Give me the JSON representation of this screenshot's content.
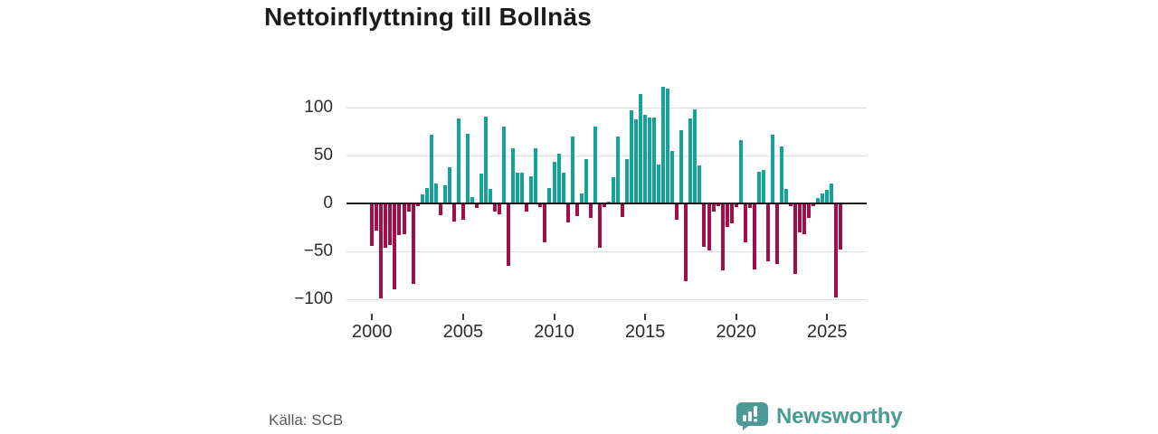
{
  "title": "Nettoinflyttning till Bollnäs",
  "source": "Källa: SCB",
  "brand": {
    "name": "Newsworthy",
    "color": "#4a9b95"
  },
  "chart_data": {
    "type": "bar",
    "title": "Nettoinflyttning till Bollnäs",
    "x_unit": "quarter",
    "x_range": "2000Q1–2025Q4",
    "x_start_year": 2000,
    "x_tick_labels": [
      "2000",
      "2005",
      "2010",
      "2015",
      "2020",
      "2025"
    ],
    "y_tick_labels": [
      "100",
      "50",
      "0",
      "−50",
      "−100"
    ],
    "y_ticks": [
      100,
      50,
      0,
      -50,
      -100
    ],
    "ylim": [
      -110,
      125
    ],
    "grid": "horizontal",
    "legend": "none",
    "positive_color": "#14a39a",
    "negative_color": "#a30d49",
    "values": [
      -43,
      -27,
      -98,
      -45,
      -42,
      -89,
      -32,
      -31,
      -8,
      -83,
      -2,
      9,
      16,
      72,
      21,
      -11,
      19,
      38,
      -18,
      89,
      -16,
      73,
      7,
      -4,
      31,
      91,
      15,
      -8,
      -10,
      80,
      -64,
      58,
      32,
      32,
      -8,
      28,
      58,
      -3,
      -40,
      16,
      43,
      52,
      32,
      -19,
      70,
      -12,
      10,
      46,
      -14,
      80,
      -45,
      -3,
      2,
      27,
      70,
      -13,
      46,
      97,
      88,
      114,
      92,
      90,
      90,
      41,
      122,
      120,
      55,
      -16,
      76,
      -80,
      89,
      98,
      40,
      -44,
      -48,
      -8,
      -2,
      -69,
      -24,
      -20,
      -3,
      66,
      -40,
      -4,
      -68,
      33,
      35,
      -59,
      72,
      -62,
      59,
      15,
      -2,
      -73,
      -29,
      -31,
      -14,
      -2,
      6,
      10,
      14,
      21,
      -97,
      -47
    ]
  }
}
